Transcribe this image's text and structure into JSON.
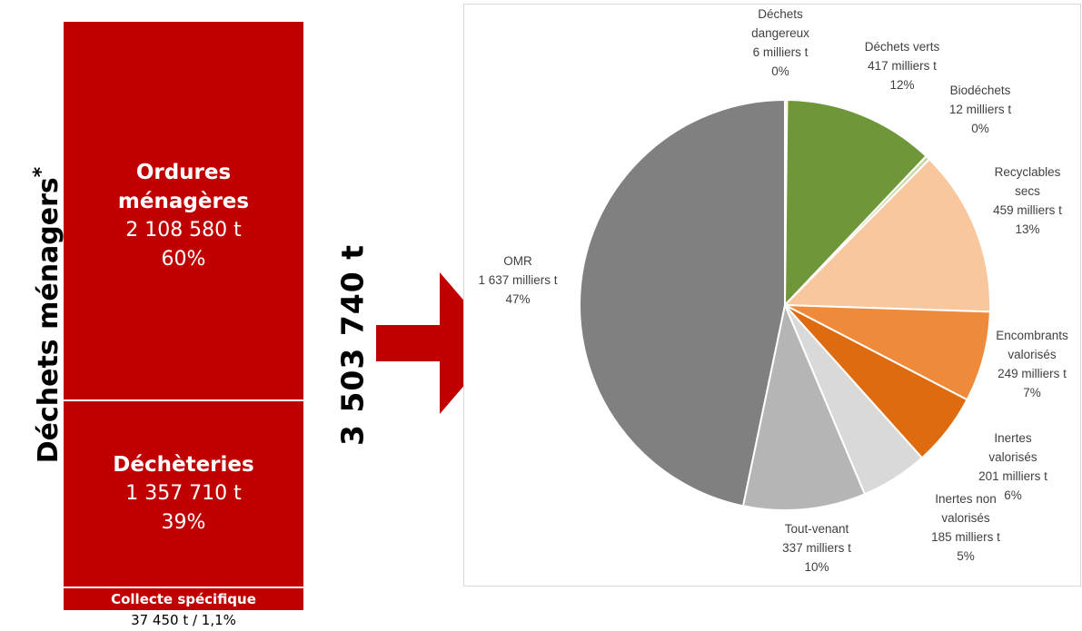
{
  "left_panel": {
    "title": "Déchets ménagers",
    "title_mark": "*",
    "blocks": [
      {
        "name": "Ordures ménagères",
        "name_line1": "Ordures",
        "name_line2": "ménagères",
        "amount": "2 108 580 t",
        "share": "60%",
        "color": "#c00000"
      },
      {
        "name": "Déchèteries",
        "amount": "1 357 710 t",
        "share": "39%",
        "color": "#c00000"
      },
      {
        "name": "Collecte spécifique",
        "amount": "37 450 t",
        "share": "1,1%",
        "color": "#c00000"
      }
    ],
    "collecte_note": "37 450 t / 1,1%"
  },
  "total": "3 503 740 t",
  "arrow_color": "#c00000",
  "chart_data": {
    "type": "pie",
    "unit": "milliers t",
    "series": [
      {
        "label": "Déchets dangereux",
        "lines": [
          "Déchets",
          "dangereux",
          "6 milliers t",
          "0%"
        ],
        "value": 6,
        "percent": "0%",
        "color": "#e6c36a"
      },
      {
        "label": "Déchets verts",
        "lines": [
          "Déchets verts",
          "417 milliers t",
          "12%"
        ],
        "value": 417,
        "percent": "12%",
        "color": "#70963a"
      },
      {
        "label": "Biodéchets",
        "lines": [
          "Biodéchets",
          "12 milliers t",
          "0%"
        ],
        "value": 12,
        "percent": "0%",
        "color": "#c8d6a6"
      },
      {
        "label": "Recyclables secs",
        "lines": [
          "Recyclables",
          "secs",
          "459 milliers t",
          "13%"
        ],
        "value": 459,
        "percent": "13%",
        "color": "#f8c79d"
      },
      {
        "label": "Encombrants valorisés",
        "lines": [
          "Encombrants",
          "valorisés",
          "249 milliers t",
          "7%"
        ],
        "value": 249,
        "percent": "7%",
        "color": "#ef8a3b"
      },
      {
        "label": "Inertes valorisés",
        "lines": [
          "Inertes",
          "valorisés",
          "201 milliers t",
          "6%"
        ],
        "value": 201,
        "percent": "6%",
        "color": "#de6b10"
      },
      {
        "label": "Inertes non valorisés",
        "lines": [
          "Inertes non",
          "valorisés",
          "185 milliers t",
          "5%"
        ],
        "value": 185,
        "percent": "5%",
        "color": "#d9d9d9"
      },
      {
        "label": "Tout-venant",
        "lines": [
          "Tout-venant",
          "337 milliers t",
          "10%"
        ],
        "value": 337,
        "percent": "10%",
        "color": "#b5b5b5"
      },
      {
        "label": "OMR",
        "lines": [
          "OMR",
          "1 637 milliers t",
          "47%"
        ],
        "value": 1637,
        "percent": "47%",
        "color": "#808080"
      }
    ],
    "start_angle_deg": 0,
    "direction": "clockwise"
  }
}
